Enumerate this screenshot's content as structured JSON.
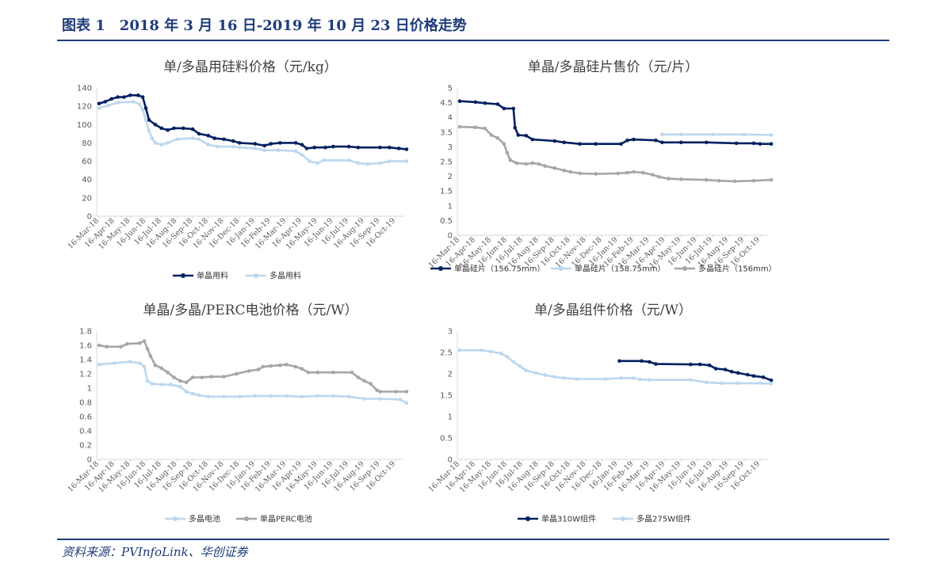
{
  "header": {
    "title": "图表 1　2018 年 3 月 16 日-2019 年 10 月 23 日价格走势"
  },
  "footer": {
    "source": "资料来源：PVInfoLink、华创证券"
  },
  "colors": {
    "dark_blue": "#002060",
    "light_blue": "#bdd7ee",
    "gray": "#a6a6a6",
    "title_blue": "#1f3b7a"
  },
  "chart_data": [
    {
      "type": "line",
      "title": "单/多晶用硅料价格（元/kg）",
      "x": [
        "16-Mar-18",
        "16-Apr-18",
        "16-May-18",
        "16-Jun-18",
        "16-Jul-18",
        "16-Aug-18",
        "16-Sep-18",
        "16-Oct-18",
        "16-Nov-18",
        "16-Dec-18",
        "16-Jan-19",
        "16-Feb-19",
        "16-Mar-19",
        "16-Apr-19",
        "16-May-19",
        "16-Jun-19",
        "16-Jul-19",
        "16-Aug-19",
        "16-Sep-19",
        "16-Oct-19"
      ],
      "ylim": [
        0,
        140
      ],
      "yticks": [
        "0",
        "20",
        "40",
        "60",
        "80",
        "100",
        "120",
        "140"
      ],
      "series": [
        {
          "name": "单晶用料",
          "color": "#002060",
          "points": [
            [
              0,
              123
            ],
            [
              0.4,
              125
            ],
            [
              0.8,
              128
            ],
            [
              1.2,
              130
            ],
            [
              1.6,
              130
            ],
            [
              2,
              132
            ],
            [
              2.5,
              132
            ],
            [
              2.8,
              130
            ],
            [
              3.0,
              118
            ],
            [
              3.2,
              105
            ],
            [
              3.6,
              100
            ],
            [
              4.0,
              96
            ],
            [
              4.4,
              94
            ],
            [
              4.8,
              96
            ],
            [
              5.4,
              96
            ],
            [
              6.0,
              95
            ],
            [
              6.4,
              90
            ],
            [
              7,
              88
            ],
            [
              7.4,
              85
            ],
            [
              8,
              84
            ],
            [
              8.6,
              82
            ],
            [
              9,
              80
            ],
            [
              10,
              79
            ],
            [
              10.6,
              77
            ],
            [
              11,
              79
            ],
            [
              11.6,
              80
            ],
            [
              12.6,
              80
            ],
            [
              13,
              78
            ],
            [
              13.3,
              74
            ],
            [
              13.8,
              75
            ],
            [
              14.5,
              75
            ],
            [
              15,
              76
            ],
            [
              16,
              76
            ],
            [
              16.6,
              75
            ],
            [
              18,
              75
            ],
            [
              18.6,
              75
            ],
            [
              19.2,
              74
            ],
            [
              19.7,
              73
            ]
          ]
        },
        {
          "name": "多晶用料",
          "color": "#bdd7ee",
          "points": [
            [
              0,
              118
            ],
            [
              0.6,
              121
            ],
            [
              1.2,
              124
            ],
            [
              2.2,
              125
            ],
            [
              2.6,
              122
            ],
            [
              2.8,
              116
            ],
            [
              3.0,
              105
            ],
            [
              3.2,
              93
            ],
            [
              3.4,
              85
            ],
            [
              3.6,
              80
            ],
            [
              4.0,
              78
            ],
            [
              4.4,
              80
            ],
            [
              5.0,
              84
            ],
            [
              6.0,
              85
            ],
            [
              6.4,
              84
            ],
            [
              7,
              78
            ],
            [
              7.6,
              76
            ],
            [
              8.6,
              76
            ],
            [
              9,
              75
            ],
            [
              10,
              74
            ],
            [
              10.6,
              72
            ],
            [
              11.5,
              72
            ],
            [
              12.6,
              71
            ],
            [
              13,
              67
            ],
            [
              13.5,
              60
            ],
            [
              14,
              58
            ],
            [
              14.4,
              61
            ],
            [
              16,
              61
            ],
            [
              16.6,
              58
            ],
            [
              17.2,
              57
            ],
            [
              18,
              58
            ],
            [
              18.6,
              60
            ],
            [
              19.7,
              60
            ]
          ]
        }
      ]
    },
    {
      "type": "line",
      "title": "单晶/多晶硅片售价（元/片）",
      "x": [
        "16-Mar-18",
        "16-Apr-18",
        "16-May-18",
        "16-Jun-18",
        "16-Jul-18",
        "16-Aug-18",
        "16-Sep-18",
        "16-Oct-18",
        "16-Nov-18",
        "16-Dec-18",
        "16-Jan-19",
        "16-Feb-19",
        "16-Mar-19",
        "16-Apr-19",
        "16-May-19",
        "16-Jun-19",
        "16-Jul-19",
        "16-Aug-19",
        "16-Sep-19",
        "16-Oct-19"
      ],
      "ylim": [
        0,
        5
      ],
      "yticks": [
        "0",
        "0.5",
        "1",
        "1.5",
        "2",
        "2.5",
        "3",
        "3.5",
        "4",
        "4.5",
        "5"
      ],
      "series": [
        {
          "name": "单晶硅片（156.75mm）",
          "color": "#002060",
          "points": [
            [
              0,
              4.55
            ],
            [
              1,
              4.52
            ],
            [
              1.6,
              4.48
            ],
            [
              2.4,
              4.45
            ],
            [
              2.8,
              4.3
            ],
            [
              3.4,
              4.3
            ],
            [
              3.5,
              3.65
            ],
            [
              3.7,
              3.4
            ],
            [
              4.2,
              3.38
            ],
            [
              4.6,
              3.25
            ],
            [
              6.0,
              3.2
            ],
            [
              6.6,
              3.15
            ],
            [
              7.6,
              3.1
            ],
            [
              8.6,
              3.1
            ],
            [
              10.2,
              3.1
            ],
            [
              10.6,
              3.22
            ],
            [
              11,
              3.25
            ],
            [
              12.4,
              3.22
            ],
            [
              12.8,
              3.15
            ],
            [
              14,
              3.15
            ],
            [
              15.6,
              3.15
            ],
            [
              17.5,
              3.12
            ],
            [
              18.6,
              3.12
            ],
            [
              19,
              3.1
            ],
            [
              19.7,
              3.1
            ]
          ]
        },
        {
          "name": "单晶硅片（158.75mm）",
          "color": "#bdd7ee",
          "points": [
            [
              12.8,
              3.42
            ],
            [
              14,
              3.42
            ],
            [
              16,
              3.42
            ],
            [
              18,
              3.42
            ],
            [
              19.7,
              3.4
            ]
          ]
        },
        {
          "name": "多晶硅片（156mm）",
          "color": "#a6a6a6",
          "points": [
            [
              0,
              3.68
            ],
            [
              1,
              3.66
            ],
            [
              1.6,
              3.62
            ],
            [
              2,
              3.4
            ],
            [
              2.4,
              3.3
            ],
            [
              2.8,
              3.1
            ],
            [
              3.0,
              2.8
            ],
            [
              3.2,
              2.55
            ],
            [
              3.6,
              2.45
            ],
            [
              4.2,
              2.42
            ],
            [
              4.6,
              2.45
            ],
            [
              5.0,
              2.42
            ],
            [
              5.4,
              2.35
            ],
            [
              6,
              2.28
            ],
            [
              6.6,
              2.2
            ],
            [
              7,
              2.15
            ],
            [
              7.6,
              2.1
            ],
            [
              8.6,
              2.08
            ],
            [
              10,
              2.1
            ],
            [
              10.6,
              2.12
            ],
            [
              11,
              2.15
            ],
            [
              11.6,
              2.12
            ],
            [
              12.2,
              2.05
            ],
            [
              12.6,
              1.98
            ],
            [
              13.2,
              1.92
            ],
            [
              14,
              1.9
            ],
            [
              15.6,
              1.88
            ],
            [
              16.4,
              1.85
            ],
            [
              17.4,
              1.83
            ],
            [
              18.6,
              1.85
            ],
            [
              19.7,
              1.88
            ]
          ]
        }
      ]
    },
    {
      "type": "line",
      "title": "单晶/多晶/PERC电池价格（元/W）",
      "x": [
        "16-Mar-18",
        "16-Apr-18",
        "16-May-18",
        "16-Jun-18",
        "16-Jul-18",
        "16-Aug-18",
        "16-Sep-18",
        "16-Oct-18",
        "16-Nov-18",
        "16-Dec-18",
        "16-Jan-19",
        "16-Feb-19",
        "16-Mar-19",
        "16-Apr-19",
        "16-May-19",
        "16-Jun-19",
        "16-Jul-19",
        "16-Aug-19",
        "16-Sep-19",
        "16-Oct-19"
      ],
      "ylim": [
        0,
        1.8
      ],
      "yticks": [
        "0",
        "0.2",
        "0.4",
        "0.6",
        "0.8",
        "1",
        "1.2",
        "1.4",
        "1.6",
        "1.8"
      ],
      "series": [
        {
          "name": "多晶电池",
          "color": "#bdd7ee",
          "points": [
            [
              0,
              1.33
            ],
            [
              1,
              1.35
            ],
            [
              2,
              1.37
            ],
            [
              2.6,
              1.35
            ],
            [
              2.9,
              1.3
            ],
            [
              3.1,
              1.1
            ],
            [
              3.4,
              1.06
            ],
            [
              4,
              1.05
            ],
            [
              4.6,
              1.05
            ],
            [
              5.2,
              1.02
            ],
            [
              5.6,
              0.95
            ],
            [
              6,
              0.92
            ],
            [
              6.4,
              0.9
            ],
            [
              7,
              0.88
            ],
            [
              8,
              0.88
            ],
            [
              9,
              0.88
            ],
            [
              10,
              0.89
            ],
            [
              11,
              0.89
            ],
            [
              12,
              0.89
            ],
            [
              13,
              0.88
            ],
            [
              14,
              0.89
            ],
            [
              15,
              0.89
            ],
            [
              16,
              0.88
            ],
            [
              17,
              0.85
            ],
            [
              18,
              0.85
            ],
            [
              19.3,
              0.84
            ],
            [
              19.7,
              0.79
            ]
          ]
        },
        {
          "name": "单晶PERC电池",
          "color": "#a6a6a6",
          "points": [
            [
              0,
              1.6
            ],
            [
              0.5,
              1.58
            ],
            [
              1.4,
              1.58
            ],
            [
              1.8,
              1.62
            ],
            [
              2.6,
              1.63
            ],
            [
              2.9,
              1.66
            ],
            [
              3.1,
              1.55
            ],
            [
              3.3,
              1.45
            ],
            [
              3.6,
              1.32
            ],
            [
              4,
              1.28
            ],
            [
              4.4,
              1.22
            ],
            [
              4.8,
              1.15
            ],
            [
              5.2,
              1.1
            ],
            [
              5.6,
              1.08
            ],
            [
              6,
              1.15
            ],
            [
              6.6,
              1.15
            ],
            [
              7.2,
              1.16
            ],
            [
              8,
              1.16
            ],
            [
              8.8,
              1.2
            ],
            [
              9.6,
              1.24
            ],
            [
              10.2,
              1.26
            ],
            [
              10.5,
              1.3
            ],
            [
              11,
              1.31
            ],
            [
              11.6,
              1.32
            ],
            [
              12,
              1.33
            ],
            [
              12.6,
              1.3
            ],
            [
              13,
              1.27
            ],
            [
              13.4,
              1.22
            ],
            [
              14,
              1.22
            ],
            [
              15,
              1.22
            ],
            [
              16.2,
              1.22
            ],
            [
              16.6,
              1.15
            ],
            [
              17,
              1.1
            ],
            [
              17.4,
              1.06
            ],
            [
              17.8,
              0.97
            ],
            [
              18,
              0.95
            ],
            [
              19,
              0.95
            ],
            [
              19.7,
              0.95
            ]
          ]
        }
      ]
    },
    {
      "type": "line",
      "title": "单/多晶组件价格（元/W）",
      "x": [
        "16-Mar-18",
        "16-Apr-18",
        "16-May-18",
        "16-Jun-18",
        "16-Jul-18",
        "16-Aug-18",
        "16-Sep-18",
        "16-Oct-18",
        "16-Nov-18",
        "16-Dec-18",
        "16-Jan-19",
        "16-Feb-19",
        "16-Mar-19",
        "16-Apr-19",
        "16-May-19",
        "16-Jun-19",
        "16-Jul-19",
        "16-Aug-19",
        "16-Sep-19",
        "16-Oct-19"
      ],
      "ylim": [
        0,
        3
      ],
      "yticks": [
        "0",
        "0.5",
        "1",
        "1.5",
        "2",
        "2.5",
        "3"
      ],
      "series": [
        {
          "name": "单晶310W组件",
          "color": "#002060",
          "points": [
            [
              10.1,
              2.3
            ],
            [
              11.5,
              2.3
            ],
            [
              12,
              2.28
            ],
            [
              12.4,
              2.23
            ],
            [
              14.6,
              2.22
            ],
            [
              15.2,
              2.22
            ],
            [
              15.8,
              2.2
            ],
            [
              16.2,
              2.12
            ],
            [
              16.8,
              2.1
            ],
            [
              17.2,
              2.05
            ],
            [
              17.6,
              2.02
            ],
            [
              18.2,
              1.98
            ],
            [
              18.6,
              1.95
            ],
            [
              19.2,
              1.92
            ],
            [
              19.7,
              1.85
            ]
          ]
        },
        {
          "name": "多晶275W组件",
          "color": "#bdd7ee",
          "points": [
            [
              0,
              2.55
            ],
            [
              1.4,
              2.55
            ],
            [
              2.0,
              2.52
            ],
            [
              2.6,
              2.48
            ],
            [
              3.0,
              2.4
            ],
            [
              3.4,
              2.28
            ],
            [
              3.8,
              2.18
            ],
            [
              4.2,
              2.08
            ],
            [
              4.8,
              2.02
            ],
            [
              5.4,
              1.97
            ],
            [
              6,
              1.93
            ],
            [
              6.6,
              1.9
            ],
            [
              7.4,
              1.88
            ],
            [
              9.2,
              1.88
            ],
            [
              10.2,
              1.9
            ],
            [
              11,
              1.9
            ],
            [
              11.4,
              1.87
            ],
            [
              12,
              1.86
            ],
            [
              14.6,
              1.86
            ],
            [
              15.6,
              1.8
            ],
            [
              16.6,
              1.78
            ],
            [
              17.6,
              1.78
            ],
            [
              19,
              1.78
            ],
            [
              19.7,
              1.77
            ]
          ]
        }
      ]
    }
  ]
}
